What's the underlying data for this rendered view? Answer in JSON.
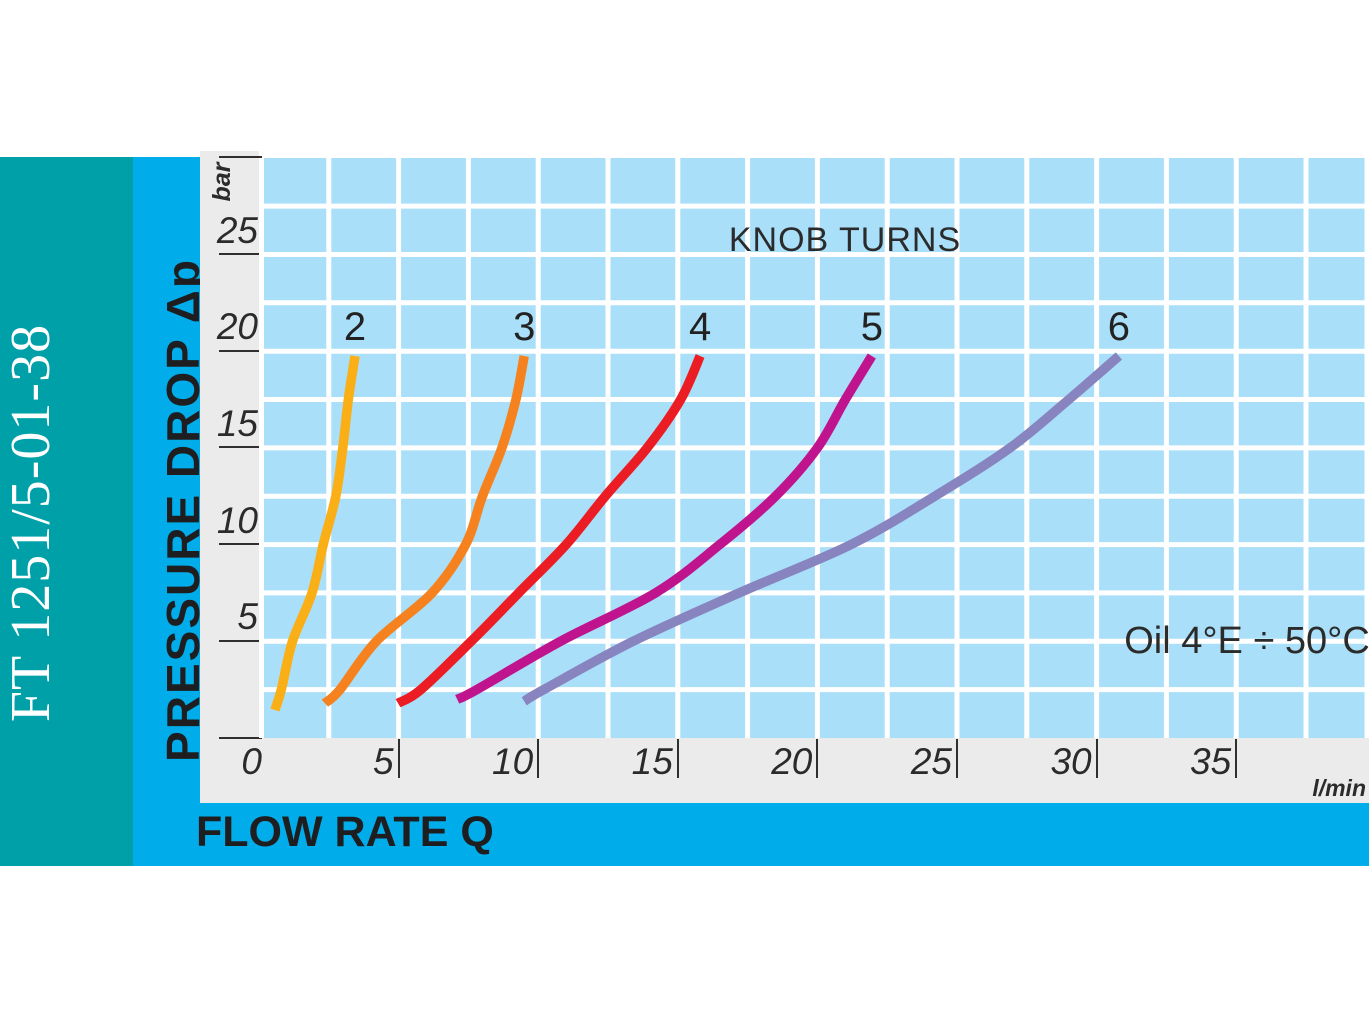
{
  "page": {
    "document_code": "FT 1251/5-01-38"
  },
  "axes": {
    "y_label": "PRESSURE DROP Δp",
    "y_unit": "bar",
    "x_label": "FLOW RATE Q",
    "x_unit": "l/min"
  },
  "chart_data": {
    "type": "line",
    "title": "KNOB TURNS",
    "xlabel": "FLOW RATE Q",
    "x_unit": "l/min",
    "ylabel": "PRESSURE DROP Δp",
    "y_unit": "bar",
    "xlim": [
      0,
      39.8
    ],
    "ylim": [
      0,
      30
    ],
    "grid": {
      "on": true,
      "x_step": 2.5,
      "y_step": 2.5
    },
    "x_ticks": [
      0,
      5,
      10,
      15,
      20,
      25,
      30,
      35
    ],
    "y_ticks": [
      0,
      5,
      10,
      15,
      20,
      25,
      30
    ],
    "y_ticks_labeled": [
      5,
      10,
      15,
      20,
      25
    ],
    "legend_title": "KNOB TURNS",
    "annotation": "Oil 4°E ÷ 50°C",
    "series": [
      {
        "name": "2",
        "knob_turns": 2,
        "color": "#FBAF17",
        "points": [
          [
            0.57,
            1.45
          ],
          [
            0.8,
            2.5
          ],
          [
            1.2,
            5
          ],
          [
            1.9,
            7.5
          ],
          [
            2.3,
            10
          ],
          [
            2.75,
            12.5
          ],
          [
            3.0,
            15
          ],
          [
            3.2,
            17.5
          ],
          [
            3.44,
            19.75
          ]
        ]
      },
      {
        "name": "3",
        "knob_turns": 3,
        "color": "#F5821F",
        "points": [
          [
            2.36,
            1.8
          ],
          [
            2.9,
            2.5
          ],
          [
            4.2,
            5
          ],
          [
            6.2,
            7.5
          ],
          [
            7.4,
            10
          ],
          [
            8.0,
            12.5
          ],
          [
            8.7,
            15
          ],
          [
            9.2,
            17.5
          ],
          [
            9.5,
            19.75
          ]
        ]
      },
      {
        "name": "4",
        "knob_turns": 4,
        "color": "#EC1C24",
        "points": [
          [
            4.98,
            1.8
          ],
          [
            5.8,
            2.5
          ],
          [
            7.6,
            5
          ],
          [
            9.3,
            7.5
          ],
          [
            11.0,
            10
          ],
          [
            12.4,
            12.5
          ],
          [
            13.9,
            15
          ],
          [
            15.1,
            17.5
          ],
          [
            15.8,
            19.75
          ]
        ]
      },
      {
        "name": "5",
        "knob_turns": 5,
        "color": "#C0148F",
        "points": [
          [
            7.1,
            2.0
          ],
          [
            7.8,
            2.5
          ],
          [
            10.8,
            5
          ],
          [
            14.2,
            7.5
          ],
          [
            16.5,
            10
          ],
          [
            18.5,
            12.5
          ],
          [
            20.0,
            15
          ],
          [
            21.0,
            17.5
          ],
          [
            21.95,
            19.75
          ]
        ]
      },
      {
        "name": "6",
        "knob_turns": 6,
        "color": "#8784C0",
        "points": [
          [
            9.5,
            1.9
          ],
          [
            10.2,
            2.5
          ],
          [
            13.4,
            5
          ],
          [
            17.2,
            7.5
          ],
          [
            21.2,
            10
          ],
          [
            24.2,
            12.5
          ],
          [
            26.9,
            15
          ],
          [
            29.0,
            17.5
          ],
          [
            30.8,
            19.75
          ]
        ]
      }
    ]
  },
  "colors": {
    "sidebar_teal": "#00A0A9",
    "band_cyan": "#00ADEA",
    "plot_background": "#A9DFF8",
    "gutter_gray": "#EBEBEB",
    "grid_white": "#FFFFFF",
    "text_dark": "#1E1E20"
  }
}
